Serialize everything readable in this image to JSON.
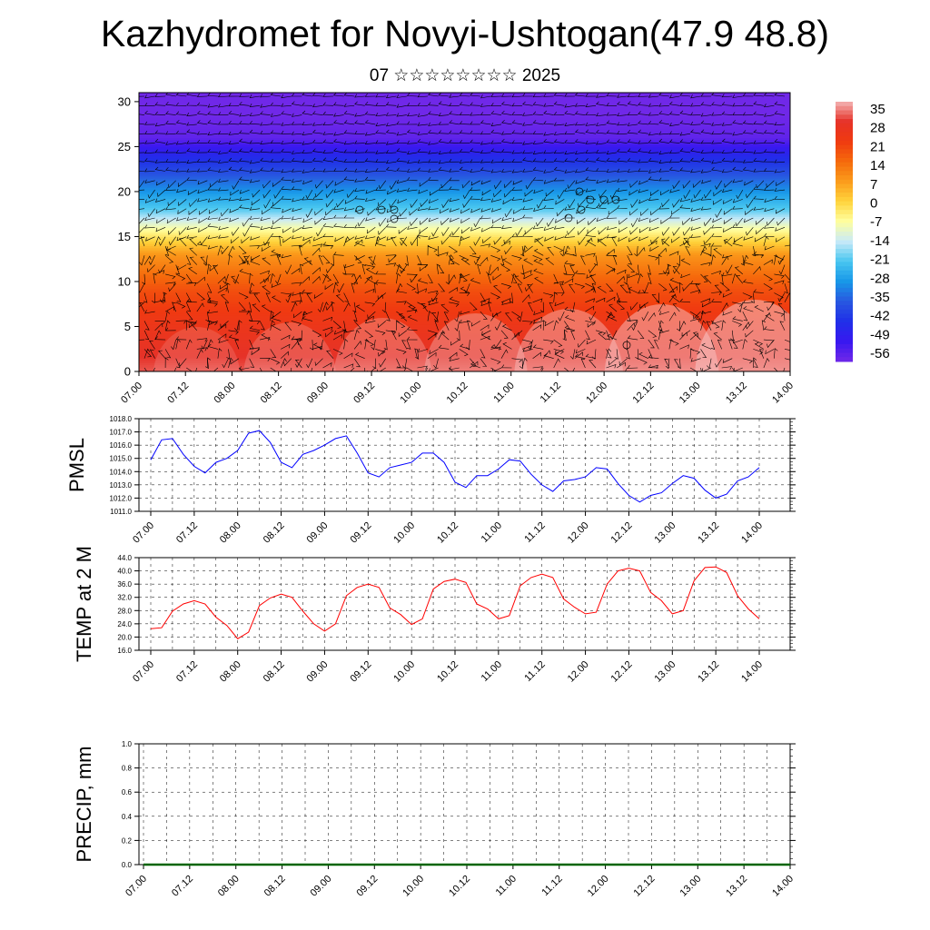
{
  "header": {
    "title": "Kazhydromet for Novyi-Ushtogan(47.9 48.8)",
    "subtitle": "07 ☆☆☆☆☆☆☆☆ 2025"
  },
  "chart_data": [
    {
      "type": "heatmap",
      "name": "cross-section",
      "x_ticks": [
        "07.00",
        "07.12",
        "08.00",
        "08.12",
        "09.00",
        "09.12",
        "10.00",
        "10.12",
        "11.00",
        "11.12",
        "12.00",
        "12.12",
        "13.00",
        "13.12",
        "14.00"
      ],
      "y_ticks": [
        "0",
        "5",
        "10",
        "15",
        "20",
        "25",
        "30"
      ],
      "ylim": [
        0,
        31
      ],
      "colorbar_labels": [
        "35",
        "28",
        "21",
        "14",
        "7",
        "0",
        "-7",
        "-14",
        "-21",
        "-28",
        "-35",
        "-42",
        "-49",
        "-56"
      ],
      "colorbar_colors": [
        "#f4b4b4",
        "#e63228",
        "#f03a10",
        "#f56a0c",
        "#fb9c1c",
        "#ffd43c",
        "#ffffa0",
        "#c8eaf8",
        "#48c6f0",
        "#1898e8",
        "#2858e0",
        "#2030e8",
        "#3818f0",
        "#7028e8"
      ],
      "temperature_profile": [
        [
          0,
          30
        ],
        [
          5,
          24
        ],
        [
          9,
          18
        ],
        [
          13,
          8
        ],
        [
          16,
          -8
        ],
        [
          18,
          -20
        ],
        [
          21,
          -32
        ],
        [
          24,
          -44
        ],
        [
          26,
          -54
        ],
        [
          31,
          -58
        ]
      ]
    },
    {
      "type": "line",
      "name": "pmsl",
      "ylabel": "PMSL",
      "x_ticks": [
        "07.00",
        "07.12",
        "08.00",
        "08.12",
        "09.00",
        "09.12",
        "10.00",
        "10.12",
        "11.00",
        "11.12",
        "12.00",
        "12.12",
        "13.00",
        "13.12",
        "14.00"
      ],
      "y_ticks": [
        "1011.0",
        "1012.0",
        "1013.0",
        "1014.0",
        "1015.0",
        "1016.0",
        "1017.0",
        "1018.0"
      ],
      "ylim": [
        1011,
        1018
      ],
      "color": "#0000ff",
      "values": [
        1014.9,
        1016.4,
        1016.5,
        1015.3,
        1014.4,
        1013.9,
        1014.7,
        1015.0,
        1015.6,
        1016.9,
        1017.1,
        1016.2,
        1014.7,
        1014.3,
        1015.3,
        1015.6,
        1016.0,
        1016.5,
        1016.7,
        1015.4,
        1013.9,
        1013.6,
        1014.3,
        1014.5,
        1014.7,
        1015.4,
        1015.4,
        1014.7,
        1013.2,
        1012.8,
        1013.7,
        1013.7,
        1014.2,
        1014.9,
        1014.8,
        1013.8,
        1013.0,
        1012.5,
        1013.3,
        1013.4,
        1013.6,
        1014.3,
        1014.2,
        1013.1,
        1012.2,
        1011.7,
        1012.2,
        1012.4,
        1013.1,
        1013.7,
        1013.5,
        1012.6,
        1012.0,
        1012.3,
        1013.3,
        1013.6,
        1014.3
      ]
    },
    {
      "type": "line",
      "name": "temp2m",
      "ylabel": "TEMP at 2 M",
      "x_ticks": [
        "07.00",
        "07.12",
        "08.00",
        "08.12",
        "09.00",
        "09.12",
        "10.00",
        "10.12",
        "11.00",
        "11.12",
        "12.00",
        "12.12",
        "13.00",
        "13.12",
        "14.00"
      ],
      "y_ticks": [
        "16.0",
        "20.0",
        "24.0",
        "28.0",
        "32.0",
        "36.0",
        "40.0",
        "44.0"
      ],
      "ylim": [
        16,
        44
      ],
      "color": "#ff0000",
      "values": [
        22.5,
        22.8,
        27.8,
        30.0,
        31.0,
        30.0,
        26.0,
        23.5,
        19.5,
        21.5,
        29.5,
        31.8,
        33.0,
        32.0,
        27.8,
        24.0,
        21.8,
        24.0,
        32.5,
        35.0,
        36.0,
        35.0,
        28.8,
        26.8,
        23.8,
        25.5,
        34.5,
        36.8,
        37.5,
        36.5,
        30.0,
        28.5,
        25.5,
        26.5,
        35.5,
        38.0,
        39.0,
        38.0,
        31.5,
        29.0,
        27.0,
        27.5,
        36.0,
        40.0,
        40.8,
        40.0,
        33.5,
        31.0,
        27.0,
        28.0,
        37.0,
        41.0,
        41.2,
        39.5,
        32.5,
        28.5,
        25.5
      ]
    },
    {
      "type": "line",
      "name": "precip",
      "ylabel": "PRECIP, mm",
      "x_ticks": [
        "07.00",
        "07.12",
        "08.00",
        "08.12",
        "09.00",
        "09.12",
        "10.00",
        "10.12",
        "11.00",
        "11.12",
        "12.00",
        "12.12",
        "13.00",
        "13.12",
        "14.00"
      ],
      "y_ticks": [
        "0.0",
        "0.2",
        "0.4",
        "0.6",
        "0.8",
        "1.0"
      ],
      "ylim": [
        0,
        1
      ],
      "color": "#006400",
      "values": [
        0,
        0,
        0,
        0,
        0,
        0,
        0,
        0,
        0,
        0,
        0,
        0,
        0,
        0,
        0,
        0,
        0,
        0,
        0,
        0,
        0,
        0,
        0,
        0,
        0,
        0,
        0,
        0,
        0,
        0,
        0,
        0,
        0,
        0,
        0,
        0,
        0,
        0,
        0,
        0,
        0,
        0,
        0,
        0,
        0,
        0,
        0,
        0,
        0,
        0,
        0,
        0,
        0,
        0,
        0,
        0,
        0
      ]
    }
  ]
}
